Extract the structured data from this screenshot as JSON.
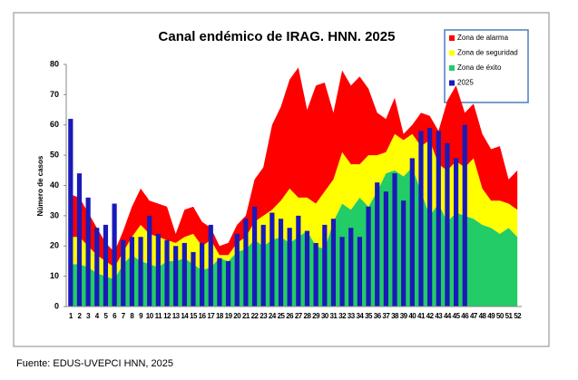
{
  "chart_data": {
    "type": "area-bar",
    "title": "Canal endémico de IRAG. HNN. 2025",
    "y_label": "Número de casos",
    "source": "Fuente: EDUS-UVEPCI HNN, 2025",
    "categories": [
      "1",
      "2",
      "3",
      "4",
      "5",
      "6",
      "7",
      "8",
      "9",
      "10",
      "11",
      "12",
      "13",
      "14",
      "15",
      "16",
      "17",
      "18",
      "19",
      "20",
      "21",
      "22",
      "23",
      "24",
      "25",
      "26",
      "27",
      "28",
      "29",
      "30",
      "31",
      "32",
      "33",
      "34",
      "35",
      "36",
      "37",
      "38",
      "39",
      "40",
      "41",
      "42",
      "43",
      "44",
      "45",
      "46",
      "47",
      "48",
      "49",
      "50",
      "51",
      "52"
    ],
    "ylim": [
      0,
      80
    ],
    "yticks": [
      0,
      10,
      20,
      30,
      40,
      50,
      60,
      70,
      80
    ],
    "series": [
      {
        "name": "Zona de alarma",
        "type": "area",
        "color": "#ff0000",
        "values": [
          14,
          13,
          11,
          9,
          6,
          5,
          7,
          10,
          12,
          11,
          11,
          11,
          3,
          9,
          9,
          8,
          4,
          3,
          4,
          6,
          7,
          14,
          16,
          28,
          31,
          36,
          43,
          29,
          39,
          36,
          22,
          27,
          26,
          29,
          22,
          14,
          11,
          12,
          2,
          3,
          11,
          8,
          11,
          23,
          25,
          18,
          18,
          18,
          17,
          18,
          8,
          13
        ]
      },
      {
        "name": "Zona de seguridad",
        "type": "area",
        "color": "#ffff00",
        "values": [
          9,
          9,
          7,
          6,
          5,
          4,
          4,
          6,
          12,
          10,
          10,
          7,
          6,
          7,
          10,
          8,
          9,
          1,
          2,
          3,
          4,
          6,
          10,
          10,
          12,
          18,
          13,
          11,
          14,
          19,
          14,
          17,
          15,
          11,
          17,
          12,
          7,
          12,
          12,
          11,
          15,
          25,
          13,
          17,
          17,
          16,
          20,
          12,
          9,
          11,
          8,
          9
        ]
      },
      {
        "name": "Zona de éxito",
        "type": "area",
        "color": "#22cc66",
        "values": [
          14,
          14,
          13,
          11,
          10,
          9,
          14,
          17,
          15,
          14,
          13,
          15,
          15,
          16,
          14,
          12,
          13,
          16,
          15,
          18,
          19,
          22,
          20,
          22,
          23,
          21,
          23,
          25,
          20,
          19,
          28,
          34,
          32,
          36,
          33,
          38,
          44,
          45,
          43,
          46,
          38,
          30,
          34,
          28,
          31,
          30,
          29,
          27,
          26,
          24,
          26,
          23
        ]
      },
      {
        "name": "2025",
        "type": "bar",
        "color": "#1a1ab8",
        "values": [
          62,
          44,
          36,
          26,
          27,
          34,
          22,
          23,
          23,
          30,
          24,
          22,
          20,
          21,
          18,
          21,
          27,
          16,
          15,
          24,
          29,
          33,
          27,
          31,
          29,
          26,
          30,
          25,
          21,
          27,
          29,
          23,
          26,
          23,
          33,
          41,
          38,
          44,
          35,
          49,
          58,
          59,
          58,
          54,
          49,
          60,
          null,
          null,
          null,
          null,
          null,
          null
        ]
      }
    ]
  }
}
